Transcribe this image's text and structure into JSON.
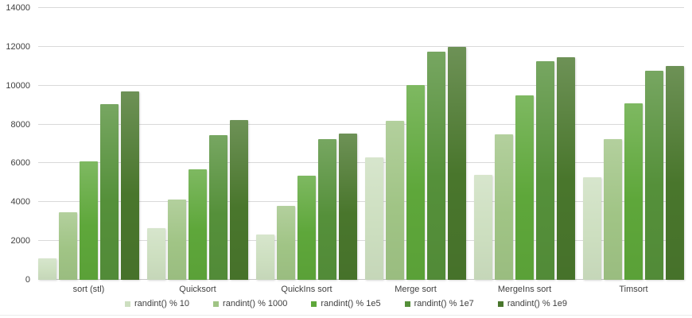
{
  "chart_data": {
    "type": "bar",
    "title": "",
    "xlabel": "",
    "ylabel": "",
    "categories": [
      "sort (stl)",
      "Quicksort",
      "QuickIns sort",
      "Merge sort",
      "MergeIns sort",
      "Timsort"
    ],
    "series": [
      {
        "name": "randint() % 10",
        "color": "#cddfc0",
        "values": [
          1100,
          2650,
          2350,
          6300,
          5400,
          5300
        ]
      },
      {
        "name": "randint() % 1000",
        "color": "#a0c485",
        "values": [
          3500,
          4150,
          3800,
          8200,
          7500,
          7250
        ]
      },
      {
        "name": "randint() % 1e5",
        "color": "#5ea73a",
        "values": [
          6100,
          5700,
          5350,
          10050,
          9500,
          9100
        ]
      },
      {
        "name": "randint() % 1e7",
        "color": "#55903a",
        "values": [
          9050,
          7450,
          7250,
          11750,
          11250,
          10750
        ]
      },
      {
        "name": "randint() % 1e9",
        "color": "#49762c",
        "values": [
          9700,
          8250,
          7550,
          12000,
          11450,
          11000
        ]
      }
    ],
    "y_ticks": [
      0,
      2000,
      4000,
      6000,
      8000,
      10000,
      12000,
      14000
    ],
    "ylim": [
      0,
      14000
    ],
    "grid": true,
    "legend_position": "bottom"
  },
  "styles": {
    "text_color": "#404040",
    "gridline_color": "#d9d9d9",
    "axis_line_color": "#c6c6c6",
    "background": "#ffffff"
  }
}
